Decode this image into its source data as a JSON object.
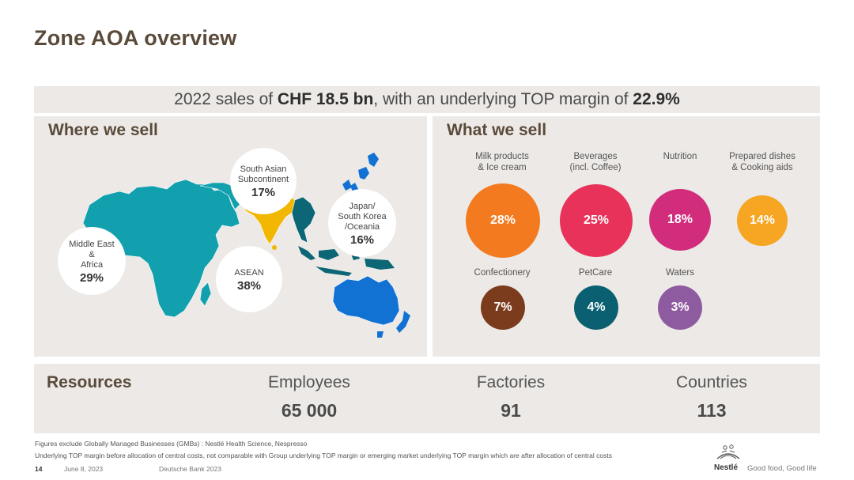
{
  "title": "Zone AOA overview",
  "banner": {
    "prefix": "2022 sales of ",
    "sales": "CHF 18.5 bn",
    "middle": ", with an underlying TOP margin of ",
    "margin": "22.9%"
  },
  "where_we_sell": {
    "title": "Where we sell",
    "regions": [
      {
        "name_lines": [
          "South Asian",
          "Subcontinent"
        ],
        "pct": "17%",
        "color": "#f2b700"
      },
      {
        "name_lines": [
          "Japan/",
          "South Korea",
          "/Oceania"
        ],
        "pct": "16%",
        "color": "#1172d4"
      },
      {
        "name_lines": [
          "Middle East",
          "&",
          "Africa"
        ],
        "pct": "29%",
        "color": "#13a0ae"
      },
      {
        "name_lines": [
          "ASEAN"
        ],
        "pct": "38%",
        "color": "#0d6675"
      }
    ]
  },
  "what_we_sell": {
    "title": "What we sell",
    "categories": [
      {
        "label_lines": [
          "Milk products",
          "& Ice cream"
        ],
        "pct": "28%",
        "color": "#f47a1f"
      },
      {
        "label_lines": [
          "Beverages",
          "(incl. Coffee)"
        ],
        "pct": "25%",
        "color": "#e8325a"
      },
      {
        "label_lines": [
          "Nutrition"
        ],
        "pct": "18%",
        "color": "#d22d7d"
      },
      {
        "label_lines": [
          "Prepared dishes",
          "& Cooking aids"
        ],
        "pct": "14%",
        "color": "#f6a623"
      },
      {
        "label_lines": [
          "Confectionery"
        ],
        "pct": "7%",
        "color": "#7a3c1d"
      },
      {
        "label_lines": [
          "PetCare"
        ],
        "pct": "4%",
        "color": "#0a6070"
      },
      {
        "label_lines": [
          "Waters"
        ],
        "pct": "3%",
        "color": "#8e5aa0"
      }
    ]
  },
  "resources": {
    "title": "Resources",
    "items": [
      {
        "label": "Employees",
        "value": "65 000"
      },
      {
        "label": "Factories",
        "value": "91"
      },
      {
        "label": "Countries",
        "value": "113"
      }
    ]
  },
  "footer": {
    "note1": "Figures exclude Globally Managed Businesses (GMBs) : Nestlé Health Science, Nespresso",
    "note2": "Underlying TOP margin before allocation of central costs, not comparable with Group underlying TOP margin or emerging market underlying TOP margin which are after allocation of central costs",
    "page": "14",
    "date": "June 8, 2023",
    "event": "Deutsche Bank 2023",
    "brand": "Nestlé",
    "slogan": "Good food, Good life"
  }
}
